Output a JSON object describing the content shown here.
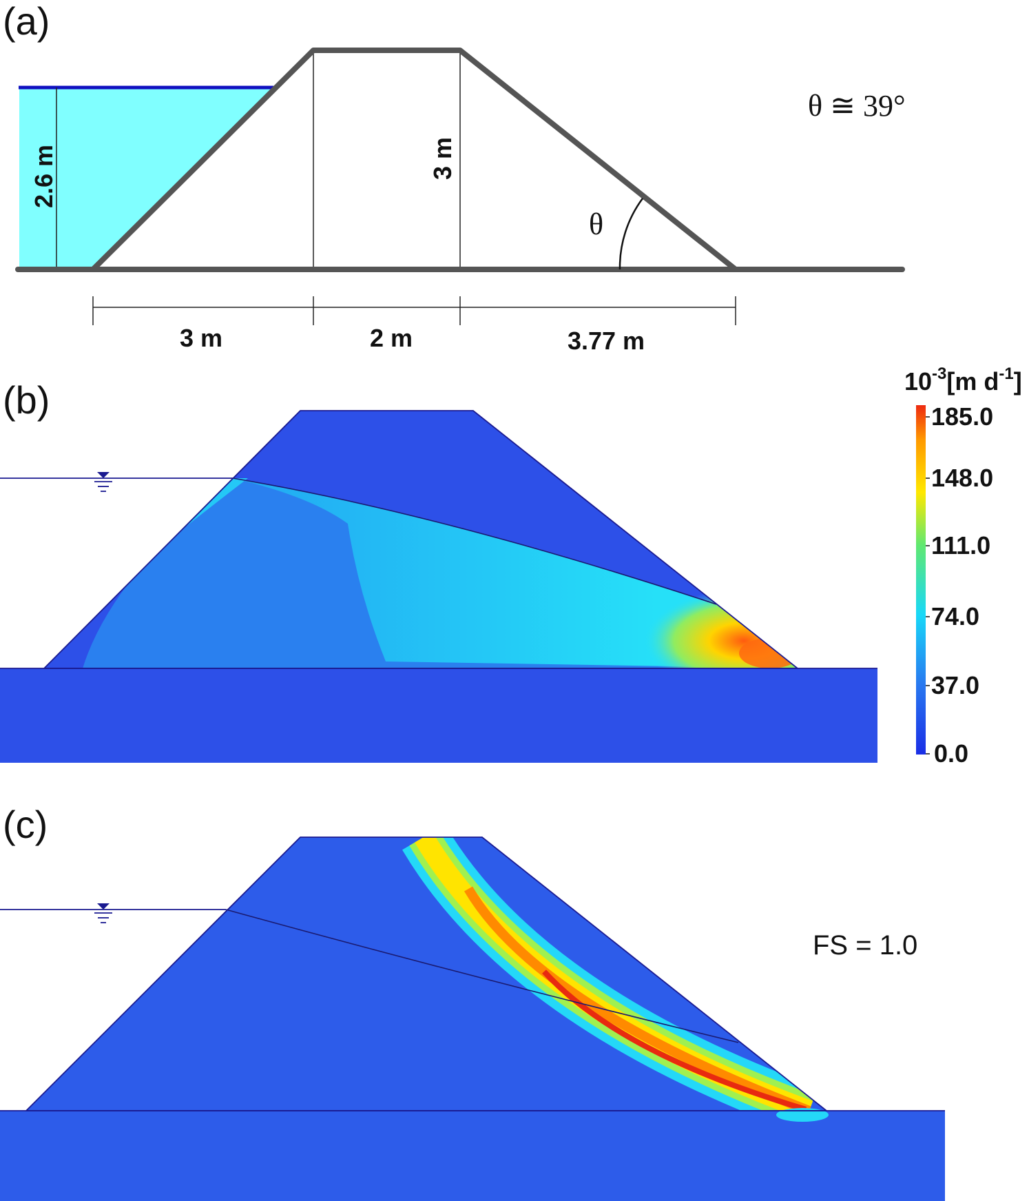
{
  "panel_a": {
    "letter": "(a)",
    "height_water": "2.6 m",
    "height_dam": "3 m",
    "width_left": "3 m",
    "width_crest": "2 m",
    "width_right": "3.77 m",
    "angle_symbol": "θ",
    "angle_label": "θ ≅ 39°"
  },
  "panel_b": {
    "letter": "(b)",
    "colorbar_unit_base": "10",
    "colorbar_unit_exp": "-3",
    "colorbar_unit_main": "[m d",
    "colorbar_unit_exp2": "-1",
    "colorbar_unit_close": "]",
    "colorbar_ticks": [
      "185.0",
      "148.0",
      "111.0",
      "74.0",
      "37.0",
      "0.0"
    ]
  },
  "panel_c": {
    "letter": "(c)",
    "fs_label": "FS = 1.0"
  },
  "colors": {
    "water": "#80ffff",
    "water_line": "#1010c0",
    "outline": "#555555",
    "deep_blue": "#2d55e8",
    "mid_blue": "#2a8cf0",
    "cyan": "#20d8f8",
    "green": "#7ee86a",
    "yellow": "#ffe400",
    "orange": "#ff9a00",
    "red": "#ee2a10"
  }
}
